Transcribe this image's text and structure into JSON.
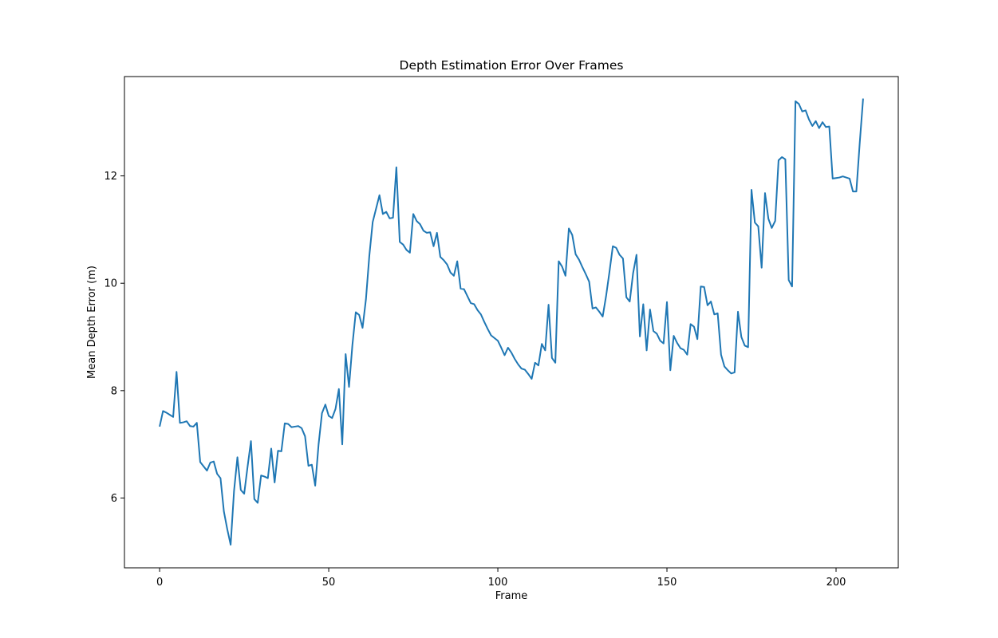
{
  "chart_data": {
    "type": "line",
    "title": "Depth Estimation Error Over Frames",
    "xlabel": "Frame",
    "ylabel": "Mean Depth Error (m)",
    "xlim": [
      -10.4,
      218.4
    ],
    "ylim": [
      4.7,
      13.85
    ],
    "xticks": [
      0,
      50,
      100,
      150,
      200
    ],
    "yticks": [
      6,
      8,
      10,
      12
    ],
    "grid": false,
    "legend": "none",
    "series": [
      {
        "color": "#1f77b4",
        "x": [
          0,
          1,
          2,
          3,
          4,
          5,
          6,
          7,
          8,
          9,
          10,
          11,
          12,
          13,
          14,
          15,
          16,
          17,
          18,
          19,
          20,
          21,
          22,
          23,
          24,
          25,
          26,
          27,
          28,
          29,
          30,
          31,
          32,
          33,
          34,
          35,
          36,
          37,
          38,
          39,
          40,
          41,
          42,
          43,
          44,
          45,
          46,
          47,
          48,
          49,
          50,
          51,
          52,
          53,
          54,
          55,
          56,
          57,
          58,
          59,
          60,
          61,
          62,
          63,
          64,
          65,
          66,
          67,
          68,
          69,
          70,
          71,
          72,
          73,
          74,
          75,
          76,
          77,
          78,
          79,
          80,
          81,
          82,
          83,
          84,
          85,
          86,
          87,
          88,
          89,
          90,
          91,
          92,
          93,
          94,
          95,
          96,
          97,
          98,
          99,
          100,
          101,
          102,
          103,
          104,
          105,
          106,
          107,
          108,
          109,
          110,
          111,
          112,
          113,
          114,
          115,
          116,
          117,
          118,
          119,
          120,
          121,
          122,
          123,
          124,
          125,
          126,
          127,
          128,
          129,
          130,
          131,
          132,
          133,
          134,
          135,
          136,
          137,
          138,
          139,
          140,
          141,
          142,
          143,
          144,
          145,
          146,
          147,
          148,
          149,
          150,
          151,
          152,
          153,
          154,
          155,
          156,
          157,
          158,
          159,
          160,
          161,
          162,
          163,
          164,
          165,
          166,
          167,
          168,
          169,
          170,
          171,
          172,
          173,
          174,
          175,
          176,
          177,
          178,
          179,
          180,
          181,
          182,
          183,
          184,
          185,
          186,
          187,
          188,
          189,
          190,
          191,
          192,
          193,
          194,
          195,
          196,
          197,
          198,
          199,
          200,
          201,
          202,
          203,
          204,
          205,
          206,
          207,
          208
        ],
        "values": [
          7.33,
          7.62,
          7.59,
          7.55,
          7.51,
          8.35,
          7.4,
          7.41,
          7.43,
          7.34,
          7.33,
          7.4,
          6.67,
          6.59,
          6.51,
          6.66,
          6.68,
          6.45,
          6.37,
          5.75,
          5.42,
          5.13,
          6.13,
          6.76,
          6.15,
          6.08,
          6.58,
          7.06,
          5.98,
          5.91,
          6.42,
          6.4,
          6.37,
          6.92,
          6.29,
          6.88,
          6.87,
          7.39,
          7.38,
          7.32,
          7.33,
          7.34,
          7.3,
          7.15,
          6.6,
          6.62,
          6.23,
          7.0,
          7.58,
          7.74,
          7.53,
          7.49,
          7.66,
          8.03,
          7.0,
          8.68,
          8.07,
          8.85,
          9.46,
          9.41,
          9.17,
          9.7,
          10.51,
          11.14,
          11.39,
          11.64,
          11.29,
          11.33,
          11.21,
          11.22,
          12.16,
          10.77,
          10.72,
          10.62,
          10.57,
          11.29,
          11.16,
          11.1,
          10.98,
          10.94,
          10.95,
          10.69,
          10.94,
          10.49,
          10.43,
          10.35,
          10.2,
          10.14,
          10.41,
          9.9,
          9.89,
          9.76,
          9.63,
          9.61,
          9.5,
          9.42,
          9.28,
          9.15,
          9.03,
          8.98,
          8.93,
          8.8,
          8.66,
          8.8,
          8.71,
          8.59,
          8.49,
          8.41,
          8.39,
          8.31,
          8.22,
          8.52,
          8.47,
          8.87,
          8.75,
          9.6,
          8.61,
          8.52,
          10.41,
          10.31,
          10.14,
          11.02,
          10.9,
          10.54,
          10.44,
          10.3,
          10.17,
          10.03,
          9.53,
          9.55,
          9.47,
          9.38,
          9.76,
          10.21,
          10.69,
          10.66,
          10.53,
          10.46,
          9.74,
          9.66,
          10.19,
          10.53,
          9.01,
          9.61,
          8.75,
          9.51,
          9.11,
          9.06,
          8.93,
          8.88,
          9.65,
          8.38,
          9.02,
          8.89,
          8.79,
          8.76,
          8.67,
          9.24,
          9.19,
          8.96,
          9.94,
          9.93,
          9.59,
          9.66,
          9.42,
          9.44,
          8.67,
          8.45,
          8.38,
          8.32,
          8.34,
          9.47,
          9.0,
          8.84,
          8.81,
          11.74,
          11.13,
          11.06,
          10.29,
          11.68,
          11.2,
          11.03,
          11.16,
          12.29,
          12.35,
          12.31,
          10.06,
          9.94,
          13.39,
          13.34,
          13.2,
          13.22,
          13.05,
          12.93,
          13.02,
          12.89,
          13.0,
          12.91,
          12.92,
          11.95,
          11.96,
          11.97,
          11.99,
          11.97,
          11.95,
          11.71,
          11.71,
          12.61,
          13.44
        ]
      }
    ]
  }
}
